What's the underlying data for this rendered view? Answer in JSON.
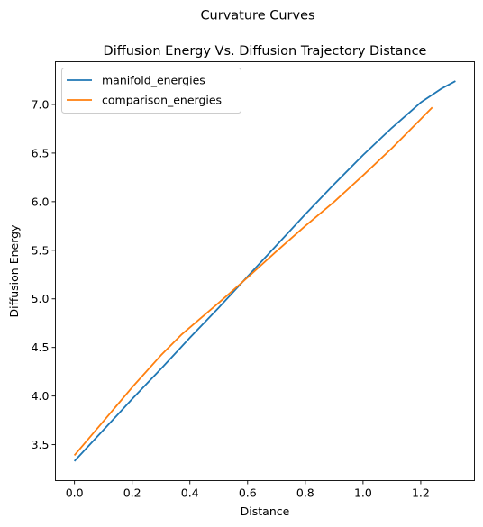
{
  "chart_data": {
    "type": "line",
    "suptitle": "Curvature Curves",
    "title": "Diffusion Energy Vs. Diffusion Trajectory Distance",
    "xlabel": "Distance",
    "ylabel": "Diffusion Energy",
    "xlim": [
      -0.066,
      1.386
    ],
    "ylim": [
      3.13,
      7.44
    ],
    "xticks": [
      0.0,
      0.2,
      0.4,
      0.6,
      0.8,
      1.0,
      1.2
    ],
    "xtick_labels": [
      "0.0",
      "0.2",
      "0.4",
      "0.6",
      "0.8",
      "1.0",
      "1.2"
    ],
    "yticks": [
      3.5,
      4.0,
      4.5,
      5.0,
      5.5,
      6.0,
      6.5,
      7.0
    ],
    "ytick_labels": [
      "3.5",
      "4.0",
      "4.5",
      "5.0",
      "5.5",
      "6.0",
      "6.5",
      "7.0"
    ],
    "grid": false,
    "legend_position": "top-left",
    "series": [
      {
        "name": "manifold_energies",
        "color": "#1f77b4",
        "x": [
          0.0,
          0.1,
          0.2,
          0.3,
          0.4,
          0.5,
          0.6,
          0.7,
          0.8,
          0.9,
          1.0,
          1.1,
          1.2,
          1.27,
          1.32
        ],
        "y": [
          3.33,
          3.65,
          3.97,
          4.28,
          4.6,
          4.91,
          5.23,
          5.55,
          5.87,
          6.18,
          6.48,
          6.76,
          7.02,
          7.16,
          7.24
        ]
      },
      {
        "name": "comparison_energies",
        "color": "#ff7f0e",
        "x": [
          0.0,
          0.1,
          0.2,
          0.3,
          0.37,
          0.5,
          0.6,
          0.7,
          0.8,
          0.9,
          1.0,
          1.1,
          1.2,
          1.24
        ],
        "y": [
          3.39,
          3.74,
          4.09,
          4.42,
          4.63,
          4.96,
          5.22,
          5.49,
          5.75,
          6.0,
          6.27,
          6.55,
          6.85,
          6.97
        ]
      }
    ]
  }
}
